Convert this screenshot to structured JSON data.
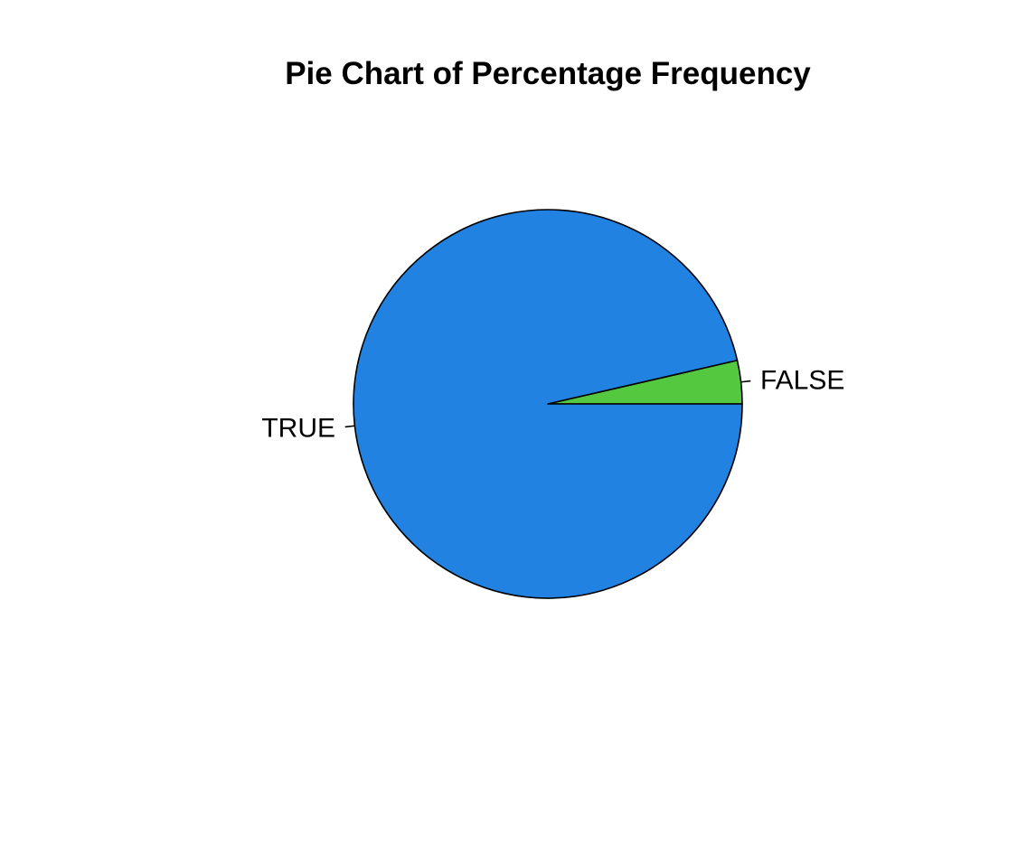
{
  "chart_data": {
    "type": "pie",
    "title": "Pie Chart of Percentage Frequency",
    "slices": [
      {
        "label": "FALSE",
        "value": 3.6,
        "color": "#54c83f"
      },
      {
        "label": "TRUE",
        "value": 96.4,
        "color": "#2182e1"
      }
    ],
    "start_angle_deg": 0,
    "direction": "counterclockwise",
    "border_color": "#000000"
  }
}
